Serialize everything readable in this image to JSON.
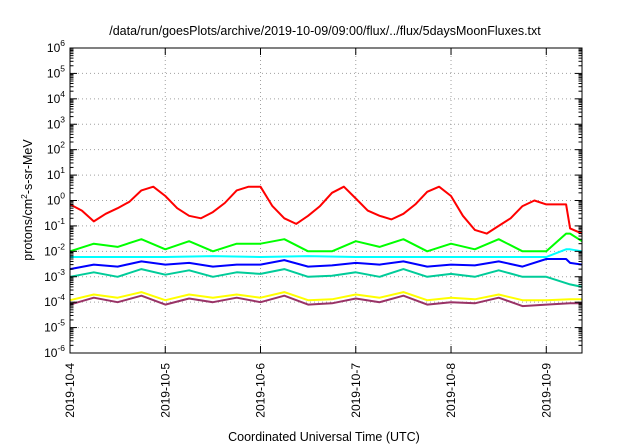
{
  "chart_data": {
    "type": "line",
    "title": "/data/run/goesPlots/archive/2019-10-09/09:00/flux/../flux/5daysMoonFluxes.txt",
    "xlabel": "Coordinated Universal Time (UTC)",
    "ylabel": "protons/cm²-s-sr-MeV",
    "ylabel_parts": {
      "pre": "protons/cm",
      "sup": "2",
      "post": "-s-sr-MeV"
    },
    "y_scale": "log",
    "ylim": [
      1e-06,
      1000000.0
    ],
    "xlim": [
      "2019-10-04T00:00",
      "2019-10-09T09:00"
    ],
    "grid": true,
    "legend": "none",
    "x_tick_labels": [
      "2019-10-4",
      "2019-10-5",
      "2019-10-6",
      "2019-10-7",
      "2019-10-8",
      "2019-10-9"
    ],
    "y_tick_exponents": [
      "-6",
      "-5",
      "-4",
      "-3",
      "-2",
      "-1",
      "0",
      "1",
      "2",
      "3",
      "4",
      "5",
      "6"
    ],
    "y_tick_base": "10",
    "series": [
      {
        "color": "#ff0000",
        "x": [
          "2019-10-04T00:00",
          "2019-10-04T03:00",
          "2019-10-04T06:00",
          "2019-10-04T09:00",
          "2019-10-04T12:00",
          "2019-10-04T15:00",
          "2019-10-04T18:00",
          "2019-10-04T21:00",
          "2019-10-05T00:00",
          "2019-10-05T03:00",
          "2019-10-05T06:00",
          "2019-10-05T09:00",
          "2019-10-05T12:00",
          "2019-10-05T15:00",
          "2019-10-05T18:00",
          "2019-10-05T21:00",
          "2019-10-06T00:00",
          "2019-10-06T03:00",
          "2019-10-06T06:00",
          "2019-10-06T09:00",
          "2019-10-06T12:00",
          "2019-10-06T15:00",
          "2019-10-06T18:00",
          "2019-10-06T21:00",
          "2019-10-07T00:00",
          "2019-10-07T03:00",
          "2019-10-07T06:00",
          "2019-10-07T09:00",
          "2019-10-07T12:00",
          "2019-10-07T15:00",
          "2019-10-07T18:00",
          "2019-10-07T21:00",
          "2019-10-08T00:00",
          "2019-10-08T03:00",
          "2019-10-08T06:00",
          "2019-10-08T09:00",
          "2019-10-08T12:00",
          "2019-10-08T15:00",
          "2019-10-08T18:00",
          "2019-10-08T21:00",
          "2019-10-09T00:00",
          "2019-10-09T03:00",
          "2019-10-09T05:00",
          "2019-10-09T06:00",
          "2019-10-09T09:00"
        ],
        "y": [
          0.7,
          0.4,
          0.15,
          0.3,
          0.5,
          0.9,
          2.5,
          3.5,
          1.5,
          0.5,
          0.25,
          0.2,
          0.35,
          0.8,
          2.5,
          3.5,
          3.5,
          0.6,
          0.2,
          0.12,
          0.25,
          0.6,
          2.0,
          3.5,
          1.2,
          0.4,
          0.25,
          0.18,
          0.3,
          0.7,
          2.2,
          3.5,
          1.5,
          0.25,
          0.07,
          0.05,
          0.1,
          0.2,
          0.6,
          1.0,
          0.7,
          0.7,
          0.7,
          0.08,
          0.05
        ]
      },
      {
        "color": "#00ff00",
        "x": [
          "2019-10-04T00:00",
          "2019-10-04T06:00",
          "2019-10-04T12:00",
          "2019-10-04T18:00",
          "2019-10-05T00:00",
          "2019-10-05T06:00",
          "2019-10-05T12:00",
          "2019-10-05T18:00",
          "2019-10-06T00:00",
          "2019-10-06T06:00",
          "2019-10-06T12:00",
          "2019-10-06T18:00",
          "2019-10-07T00:00",
          "2019-10-07T06:00",
          "2019-10-07T12:00",
          "2019-10-07T18:00",
          "2019-10-08T00:00",
          "2019-10-08T06:00",
          "2019-10-08T12:00",
          "2019-10-08T18:00",
          "2019-10-09T00:00",
          "2019-10-09T05:00",
          "2019-10-09T06:00",
          "2019-10-09T09:00"
        ],
        "y": [
          0.01,
          0.02,
          0.015,
          0.03,
          0.012,
          0.025,
          0.01,
          0.02,
          0.02,
          0.03,
          0.01,
          0.01,
          0.025,
          0.015,
          0.03,
          0.01,
          0.02,
          0.012,
          0.03,
          0.01,
          0.01,
          0.05,
          0.05,
          0.025
        ]
      },
      {
        "color": "#0000ff",
        "x": [
          "2019-10-04T00:00",
          "2019-10-04T06:00",
          "2019-10-04T12:00",
          "2019-10-04T18:00",
          "2019-10-05T00:00",
          "2019-10-05T06:00",
          "2019-10-05T12:00",
          "2019-10-05T18:00",
          "2019-10-06T00:00",
          "2019-10-06T06:00",
          "2019-10-06T12:00",
          "2019-10-06T18:00",
          "2019-10-07T00:00",
          "2019-10-07T06:00",
          "2019-10-07T12:00",
          "2019-10-07T18:00",
          "2019-10-08T00:00",
          "2019-10-08T06:00",
          "2019-10-08T12:00",
          "2019-10-08T18:00",
          "2019-10-09T00:00",
          "2019-10-09T05:00",
          "2019-10-09T06:00",
          "2019-10-09T09:00"
        ],
        "y": [
          0.002,
          0.003,
          0.0025,
          0.004,
          0.003,
          0.0035,
          0.0025,
          0.003,
          0.003,
          0.0045,
          0.0025,
          0.0028,
          0.0035,
          0.003,
          0.004,
          0.0025,
          0.003,
          0.0028,
          0.004,
          0.0025,
          0.005,
          0.005,
          0.0035,
          0.003
        ]
      },
      {
        "color": "#00ffff",
        "x": [
          "2019-10-04T00:00",
          "2019-10-04T12:00",
          "2019-10-05T00:00",
          "2019-10-05T12:00",
          "2019-10-06T00:00",
          "2019-10-06T12:00",
          "2019-10-07T00:00",
          "2019-10-07T12:00",
          "2019-10-08T00:00",
          "2019-10-08T12:00",
          "2019-10-09T00:00",
          "2019-10-09T05:00",
          "2019-10-09T06:00",
          "2019-10-09T09:00"
        ],
        "y": [
          0.006,
          0.006,
          0.006,
          0.0065,
          0.006,
          0.0065,
          0.006,
          0.006,
          0.006,
          0.006,
          0.006,
          0.012,
          0.012,
          0.01
        ]
      },
      {
        "color": "#00cc99",
        "x": [
          "2019-10-04T00:00",
          "2019-10-04T06:00",
          "2019-10-04T12:00",
          "2019-10-04T18:00",
          "2019-10-05T00:00",
          "2019-10-05T06:00",
          "2019-10-05T12:00",
          "2019-10-05T18:00",
          "2019-10-06T00:00",
          "2019-10-06T06:00",
          "2019-10-06T12:00",
          "2019-10-06T18:00",
          "2019-10-07T00:00",
          "2019-10-07T06:00",
          "2019-10-07T12:00",
          "2019-10-07T18:00",
          "2019-10-08T00:00",
          "2019-10-08T06:00",
          "2019-10-08T12:00",
          "2019-10-08T18:00",
          "2019-10-09T00:00",
          "2019-10-09T06:00",
          "2019-10-09T09:00"
        ],
        "y": [
          0.001,
          0.0015,
          0.001,
          0.002,
          0.0012,
          0.0018,
          0.001,
          0.0015,
          0.0013,
          0.002,
          0.001,
          0.0011,
          0.0015,
          0.001,
          0.002,
          0.001,
          0.0013,
          0.001,
          0.0018,
          0.001,
          0.001,
          0.0005,
          0.0004
        ]
      },
      {
        "color": "#ffff00",
        "x": [
          "2019-10-04T00:00",
          "2019-10-04T06:00",
          "2019-10-04T12:00",
          "2019-10-04T18:00",
          "2019-10-05T00:00",
          "2019-10-05T06:00",
          "2019-10-05T12:00",
          "2019-10-05T18:00",
          "2019-10-06T00:00",
          "2019-10-06T06:00",
          "2019-10-06T12:00",
          "2019-10-06T18:00",
          "2019-10-07T00:00",
          "2019-10-07T06:00",
          "2019-10-07T12:00",
          "2019-10-07T18:00",
          "2019-10-08T00:00",
          "2019-10-08T06:00",
          "2019-10-08T12:00",
          "2019-10-08T18:00",
          "2019-10-09T00:00",
          "2019-10-09T06:00",
          "2019-10-09T09:00"
        ],
        "y": [
          0.00012,
          0.0002,
          0.00015,
          0.00025,
          0.00012,
          0.0002,
          0.00015,
          0.0002,
          0.00015,
          0.00025,
          0.00012,
          0.00013,
          0.0002,
          0.00015,
          0.00025,
          0.00012,
          0.00015,
          0.00013,
          0.0002,
          0.00012,
          0.00012,
          0.00013,
          0.00013
        ]
      },
      {
        "color": "#993366",
        "x": [
          "2019-10-04T00:00",
          "2019-10-04T06:00",
          "2019-10-04T12:00",
          "2019-10-04T18:00",
          "2019-10-05T00:00",
          "2019-10-05T06:00",
          "2019-10-05T12:00",
          "2019-10-05T18:00",
          "2019-10-06T00:00",
          "2019-10-06T06:00",
          "2019-10-06T12:00",
          "2019-10-06T18:00",
          "2019-10-07T00:00",
          "2019-10-07T06:00",
          "2019-10-07T12:00",
          "2019-10-07T18:00",
          "2019-10-08T00:00",
          "2019-10-08T06:00",
          "2019-10-08T12:00",
          "2019-10-08T18:00",
          "2019-10-09T00:00",
          "2019-10-09T06:00",
          "2019-10-09T09:00"
        ],
        "y": [
          8e-05,
          0.00015,
          0.0001,
          0.00018,
          8e-05,
          0.00014,
          0.0001,
          0.00015,
          0.0001,
          0.00018,
          8e-05,
          9e-05,
          0.00014,
          0.0001,
          0.00018,
          8e-05,
          0.0001,
          9e-05,
          0.00015,
          7e-05,
          8e-05,
          9e-05,
          9e-05
        ]
      }
    ]
  }
}
